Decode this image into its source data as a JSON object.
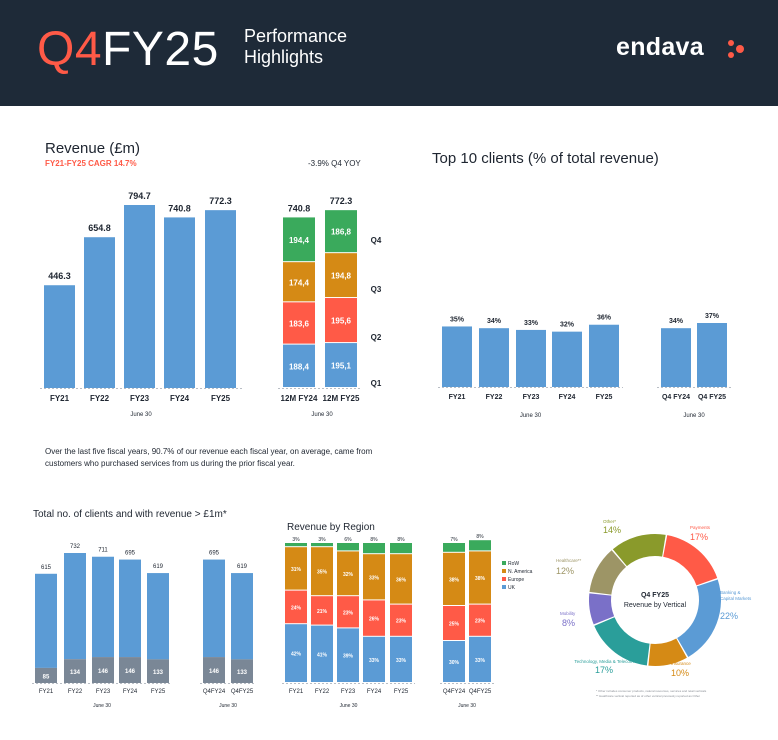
{
  "header": {
    "q4": "Q4",
    "fy": "FY25",
    "subtitle": "Performance\nHighlights",
    "brand": "endava",
    "colors": {
      "background": "#1e2a38",
      "accent": "#ff5a47"
    }
  },
  "paragraph": "Over the last five fiscal years, 90.7% of our revenue each fiscal year, on average, came from customers who purchased services from us during the prior fiscal year.",
  "colors": {
    "blue": "#5b9bd5",
    "red": "#ff5a47",
    "orange": "#d58a15",
    "green": "#3aaa5c",
    "grey": "#7a8796",
    "purple": "#7a70c8",
    "olive": "#8a9a2b",
    "teal": "#2a9e9a",
    "tan": "#9d9566"
  },
  "chart_data": [
    {
      "id": "revenue",
      "type": "bar",
      "title": "Revenue (£m)",
      "subtitle": "FY21-FY25 CAGR 14.7%",
      "annotation": "-3.9% Q4 YOY",
      "categories": [
        "FY21",
        "FY22",
        "FY23",
        "FY24",
        "FY25"
      ],
      "values": [
        446.3,
        654.8,
        794.7,
        740.8,
        772.3
      ],
      "value_labels": [
        "446.3",
        "654.8",
        "794.7",
        "740.8",
        "772.3"
      ],
      "xlabel": "June 30",
      "ylim": [
        0,
        800
      ]
    },
    {
      "id": "revenue-quarters",
      "type": "bar",
      "stacked": true,
      "categories": [
        "12M FY24",
        "12M FY25"
      ],
      "totals": [
        "740.8",
        "772.3"
      ],
      "series": [
        {
          "name": "Q1",
          "values": [
            188.4,
            195.1
          ],
          "labels": [
            "188,4",
            "195,1"
          ]
        },
        {
          "name": "Q2",
          "values": [
            183.6,
            195.6
          ],
          "labels": [
            "183,6",
            "195,6"
          ]
        },
        {
          "name": "Q3",
          "values": [
            174.4,
            194.8
          ],
          "labels": [
            "174,4",
            "194,8"
          ]
        },
        {
          "name": "Q4",
          "values": [
            194.4,
            186.8
          ],
          "labels": [
            "194,4",
            "186,8"
          ]
        }
      ],
      "xlabel": "June 30",
      "ylim": [
        0,
        800
      ]
    },
    {
      "id": "top10",
      "type": "bar",
      "title": "Top 10 clients (% of total revenue)",
      "groups": [
        {
          "categories": [
            "FY21",
            "FY22",
            "FY23",
            "FY24",
            "FY25"
          ],
          "values": [
            35,
            34,
            33,
            32,
            36
          ],
          "xlabel": "June 30"
        },
        {
          "categories": [
            "Q4 FY24",
            "Q4 FY25"
          ],
          "values": [
            34,
            37
          ],
          "xlabel": "June 30"
        }
      ],
      "value_suffix": "%",
      "ylim": [
        0,
        100
      ]
    },
    {
      "id": "clients",
      "type": "bar",
      "title": "Total no. of clients and with revenue > £1m*",
      "groups": [
        {
          "categories": [
            "FY21",
            "FY22",
            "FY23",
            "FY24",
            "FY25"
          ],
          "total": [
            615,
            732,
            711,
            695,
            619
          ],
          "over1m": [
            85,
            134,
            146,
            146,
            133
          ],
          "xlabel": "June 30"
        },
        {
          "categories": [
            "Q4FY24",
            "Q4FY25"
          ],
          "total": [
            695,
            619
          ],
          "over1m": [
            146,
            133
          ],
          "xlabel": "June 30"
        }
      ],
      "ylim": [
        0,
        740
      ]
    },
    {
      "id": "region",
      "type": "bar",
      "stacked": true,
      "title": "Revenue by Region",
      "legend": [
        "RoW",
        "N. America",
        "Europe",
        "UK"
      ],
      "groups": [
        {
          "categories": [
            "FY21",
            "FY22",
            "FY23",
            "FY24",
            "FY25"
          ],
          "xlabel": "June 30",
          "series": [
            {
              "name": "UK",
              "values": [
                42,
                41,
                39,
                33,
                33
              ]
            },
            {
              "name": "Europe",
              "values": [
                24,
                21,
                23,
                26,
                23
              ]
            },
            {
              "name": "N. America",
              "values": [
                31,
                35,
                32,
                33,
                36
              ]
            },
            {
              "name": "RoW",
              "values": [
                3,
                3,
                6,
                8,
                8
              ]
            }
          ]
        },
        {
          "categories": [
            "Q4FY24",
            "Q4FY25"
          ],
          "xlabel": "June 30",
          "series": [
            {
              "name": "UK",
              "values": [
                30,
                33
              ]
            },
            {
              "name": "Europe",
              "values": [
                25,
                23
              ]
            },
            {
              "name": "N. America",
              "values": [
                38,
                38
              ]
            },
            {
              "name": "RoW",
              "values": [
                7,
                8
              ]
            }
          ]
        }
      ],
      "value_suffix": "%"
    },
    {
      "id": "vertical",
      "type": "pie",
      "title": "Q4 FY25",
      "subtitle": "Revenue by Vertical",
      "labels": [
        "Payments",
        "Banking & Capital Markets",
        "Insurance",
        "Technology, Media & Telecom",
        "Mobility",
        "Healthcare**",
        "Other*"
      ],
      "values": [
        17,
        22,
        10,
        17,
        8,
        12,
        14
      ],
      "value_labels": [
        "17%",
        "22%",
        "10%",
        "17%",
        "8%",
        "12%",
        "14%"
      ],
      "footnote1": "* Other includes consumer products, natural resources, services and retail verticals",
      "footnote2": "** Healthcare vertical reported as of other vertical previously reported as Other"
    }
  ]
}
